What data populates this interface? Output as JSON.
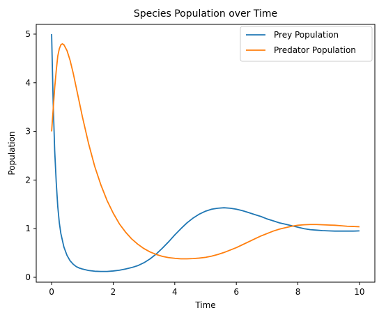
{
  "chart_data": {
    "type": "line",
    "title": "Species Population over Time",
    "xlabel": "Time",
    "ylabel": "Population",
    "xlim": [
      -0.5,
      10.5
    ],
    "ylim": [
      -0.1,
      5.2
    ],
    "xticks": [
      0,
      2,
      4,
      6,
      8,
      10
    ],
    "yticks": [
      0,
      1,
      2,
      3,
      4,
      5
    ],
    "grid": false,
    "legend_position": "upper-right",
    "series": [
      {
        "name": "Prey Population",
        "color": "#1f77b4",
        "points": [
          [
            0.0,
            5.0
          ],
          [
            0.05,
            3.6
          ],
          [
            0.1,
            2.6
          ],
          [
            0.15,
            1.95
          ],
          [
            0.2,
            1.45
          ],
          [
            0.25,
            1.12
          ],
          [
            0.3,
            0.9
          ],
          [
            0.4,
            0.62
          ],
          [
            0.5,
            0.45
          ],
          [
            0.6,
            0.34
          ],
          [
            0.7,
            0.27
          ],
          [
            0.8,
            0.22
          ],
          [
            0.9,
            0.19
          ],
          [
            1.0,
            0.17
          ],
          [
            1.2,
            0.14
          ],
          [
            1.4,
            0.125
          ],
          [
            1.6,
            0.12
          ],
          [
            1.7,
            0.12
          ],
          [
            1.8,
            0.12
          ],
          [
            2.0,
            0.13
          ],
          [
            2.2,
            0.145
          ],
          [
            2.4,
            0.17
          ],
          [
            2.6,
            0.2
          ],
          [
            2.8,
            0.24
          ],
          [
            3.0,
            0.3
          ],
          [
            3.2,
            0.38
          ],
          [
            3.4,
            0.48
          ],
          [
            3.6,
            0.6
          ],
          [
            3.8,
            0.73
          ],
          [
            4.0,
            0.87
          ],
          [
            4.2,
            1.0
          ],
          [
            4.4,
            1.12
          ],
          [
            4.6,
            1.22
          ],
          [
            4.8,
            1.3
          ],
          [
            5.0,
            1.36
          ],
          [
            5.2,
            1.4
          ],
          [
            5.4,
            1.42
          ],
          [
            5.6,
            1.43
          ],
          [
            5.8,
            1.42
          ],
          [
            6.0,
            1.4
          ],
          [
            6.2,
            1.37
          ],
          [
            6.4,
            1.33
          ],
          [
            6.6,
            1.29
          ],
          [
            6.8,
            1.25
          ],
          [
            7.0,
            1.2
          ],
          [
            7.2,
            1.16
          ],
          [
            7.4,
            1.12
          ],
          [
            7.6,
            1.09
          ],
          [
            7.8,
            1.06
          ],
          [
            8.0,
            1.03
          ],
          [
            8.2,
            1.0
          ],
          [
            8.4,
            0.98
          ],
          [
            8.6,
            0.97
          ],
          [
            8.8,
            0.96
          ],
          [
            9.0,
            0.955
          ],
          [
            9.2,
            0.95
          ],
          [
            9.4,
            0.95
          ],
          [
            9.6,
            0.95
          ],
          [
            9.8,
            0.95
          ],
          [
            10.0,
            0.955
          ]
        ]
      },
      {
        "name": "Predator Population",
        "color": "#ff7f0e",
        "points": [
          [
            0.0,
            3.0
          ],
          [
            0.05,
            3.45
          ],
          [
            0.1,
            3.9
          ],
          [
            0.15,
            4.25
          ],
          [
            0.2,
            4.55
          ],
          [
            0.25,
            4.7
          ],
          [
            0.3,
            4.78
          ],
          [
            0.35,
            4.8
          ],
          [
            0.4,
            4.78
          ],
          [
            0.5,
            4.66
          ],
          [
            0.6,
            4.46
          ],
          [
            0.7,
            4.2
          ],
          [
            0.8,
            3.9
          ],
          [
            0.9,
            3.6
          ],
          [
            1.0,
            3.3
          ],
          [
            1.2,
            2.75
          ],
          [
            1.4,
            2.28
          ],
          [
            1.6,
            1.9
          ],
          [
            1.8,
            1.58
          ],
          [
            2.0,
            1.32
          ],
          [
            2.2,
            1.1
          ],
          [
            2.4,
            0.93
          ],
          [
            2.6,
            0.79
          ],
          [
            2.8,
            0.68
          ],
          [
            3.0,
            0.59
          ],
          [
            3.2,
            0.52
          ],
          [
            3.4,
            0.47
          ],
          [
            3.6,
            0.43
          ],
          [
            3.8,
            0.405
          ],
          [
            4.0,
            0.39
          ],
          [
            4.2,
            0.38
          ],
          [
            4.4,
            0.38
          ],
          [
            4.6,
            0.385
          ],
          [
            4.8,
            0.395
          ],
          [
            5.0,
            0.41
          ],
          [
            5.2,
            0.435
          ],
          [
            5.4,
            0.47
          ],
          [
            5.6,
            0.51
          ],
          [
            5.8,
            0.56
          ],
          [
            6.0,
            0.61
          ],
          [
            6.2,
            0.67
          ],
          [
            6.4,
            0.73
          ],
          [
            6.6,
            0.79
          ],
          [
            6.8,
            0.85
          ],
          [
            7.0,
            0.9
          ],
          [
            7.2,
            0.95
          ],
          [
            7.4,
            0.99
          ],
          [
            7.6,
            1.02
          ],
          [
            7.8,
            1.05
          ],
          [
            8.0,
            1.07
          ],
          [
            8.2,
            1.08
          ],
          [
            8.4,
            1.085
          ],
          [
            8.6,
            1.085
          ],
          [
            8.8,
            1.08
          ],
          [
            9.0,
            1.075
          ],
          [
            9.2,
            1.07
          ],
          [
            9.4,
            1.06
          ],
          [
            9.6,
            1.05
          ],
          [
            9.8,
            1.045
          ],
          [
            10.0,
            1.04
          ]
        ]
      }
    ]
  }
}
